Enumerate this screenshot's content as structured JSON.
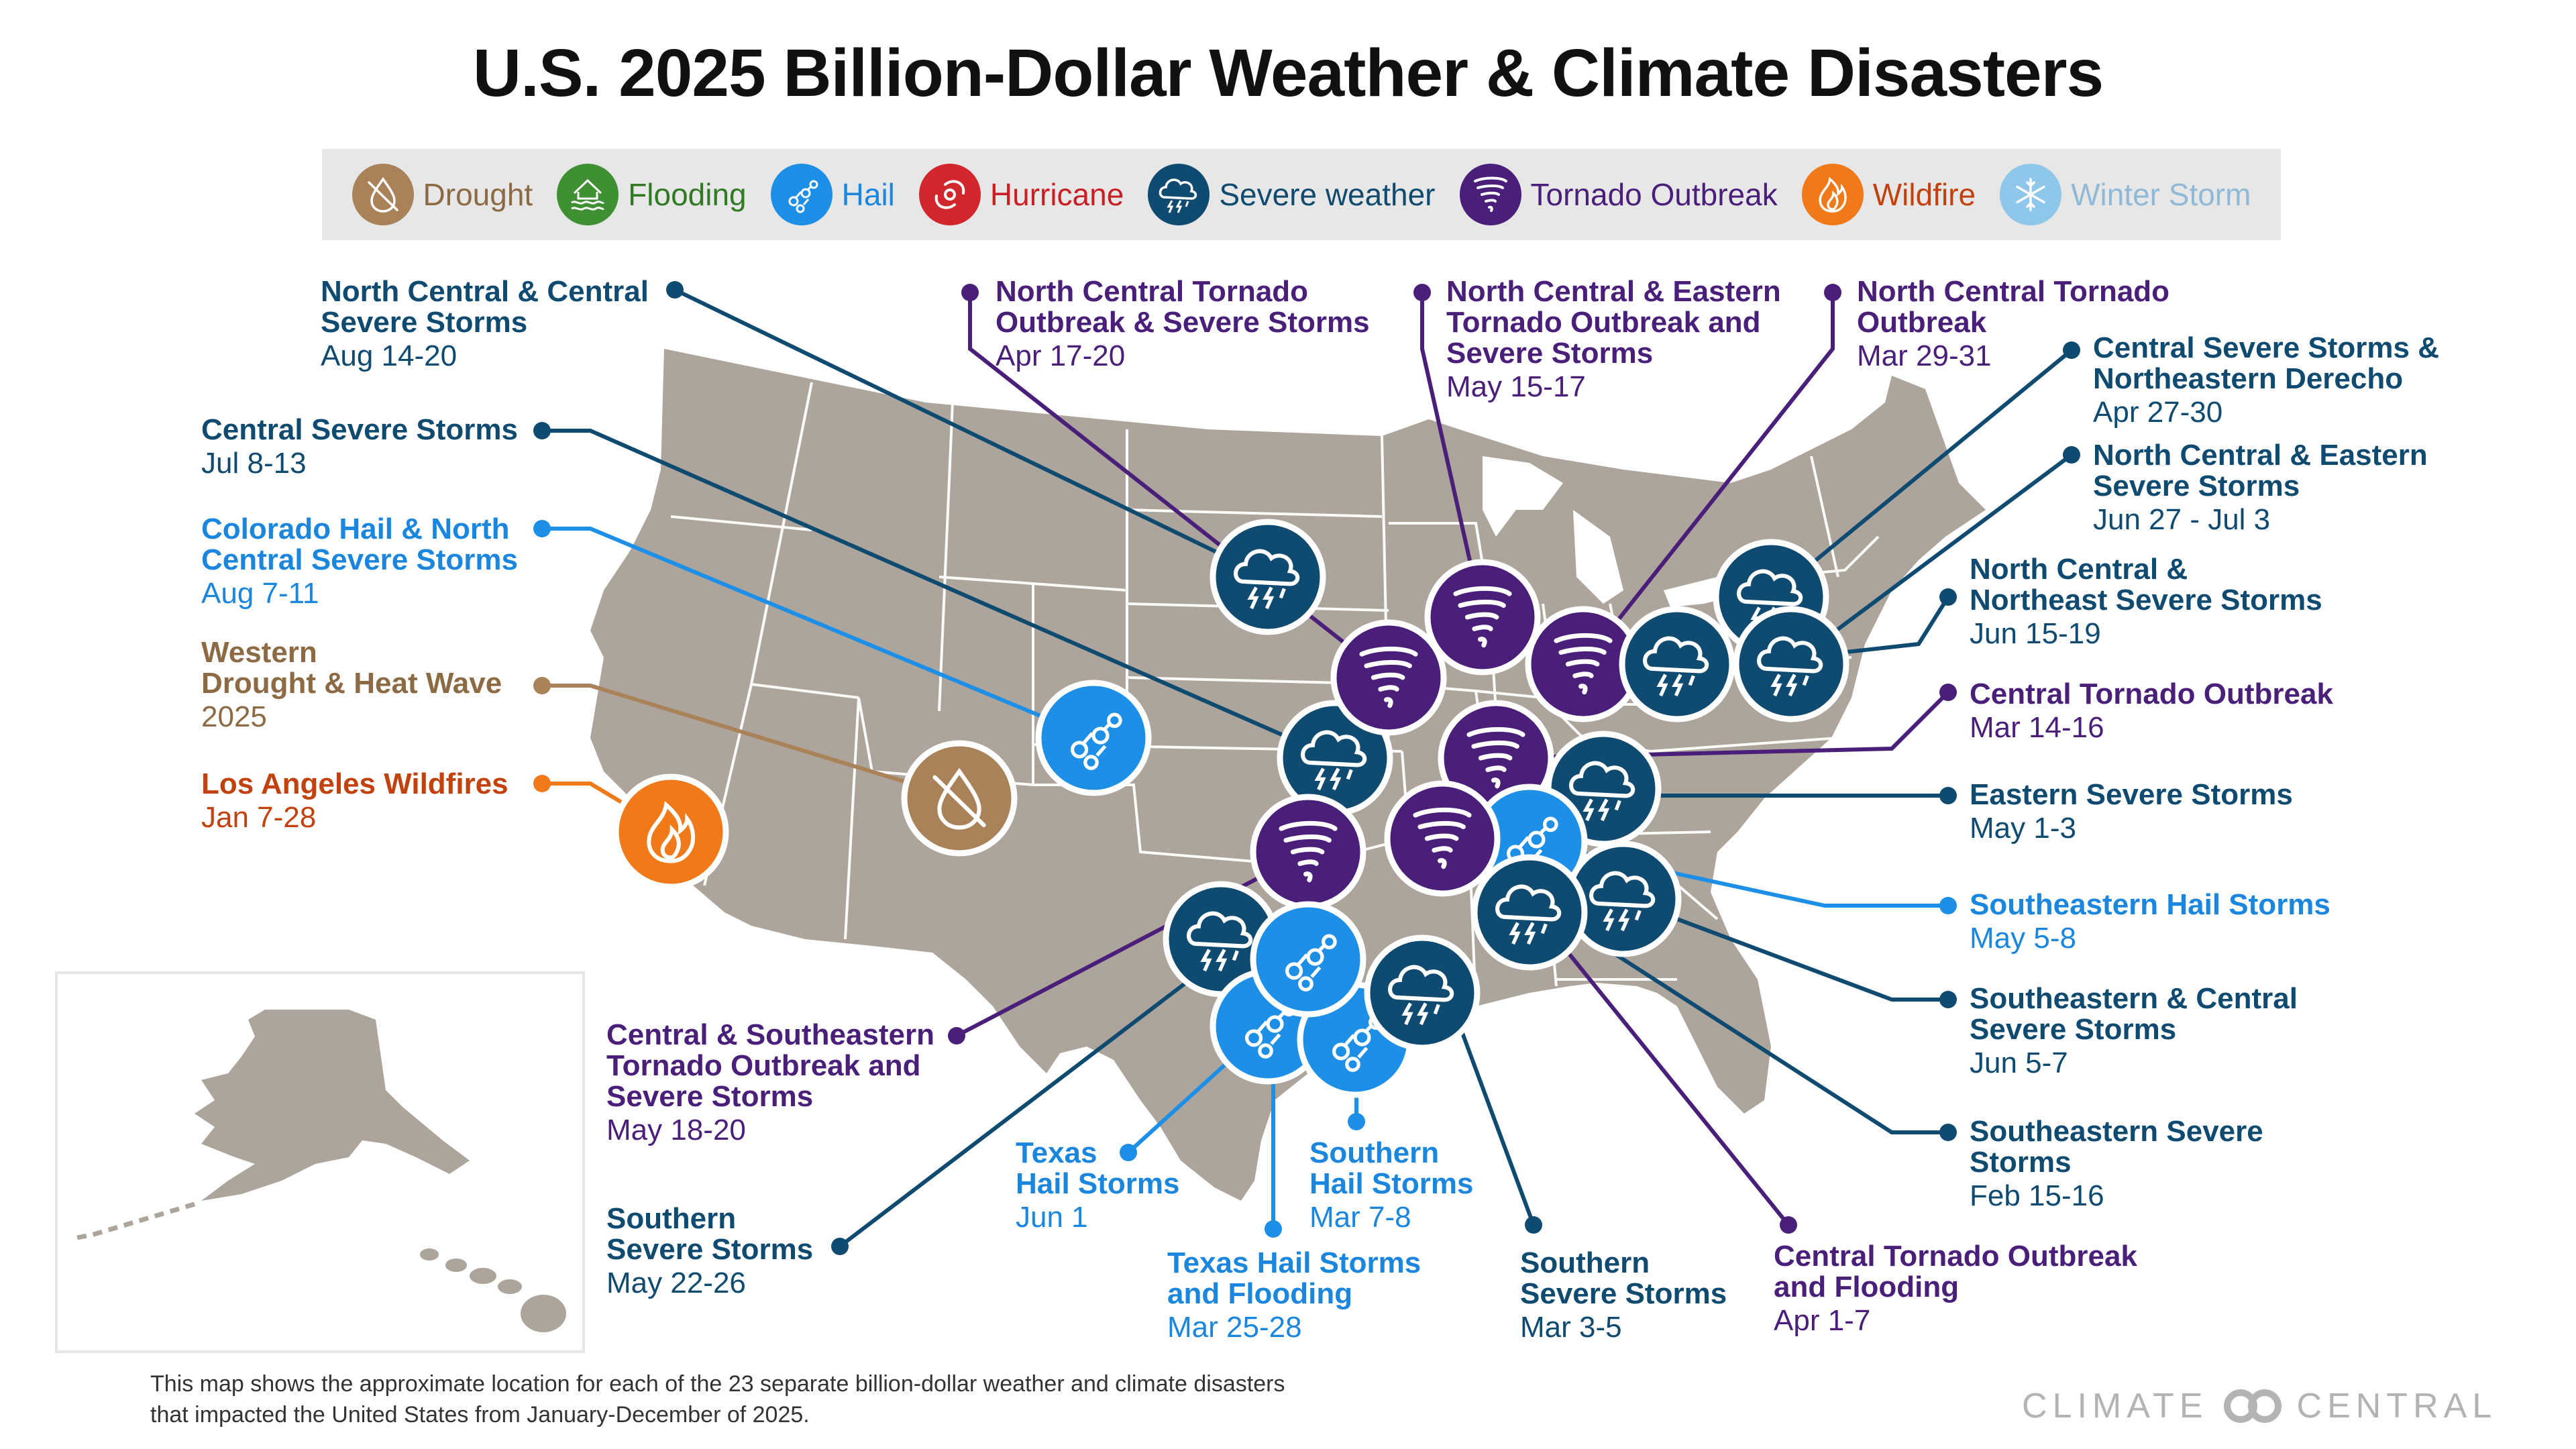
{
  "title": "U.S. 2025 Billion-Dollar Weather & Climate Disasters",
  "legend": [
    {
      "key": "drought",
      "label": "Drought",
      "color": "#a9825a",
      "text_color": "#8c6a44",
      "icon": "drought-icon"
    },
    {
      "key": "flooding",
      "label": "Flooding",
      "color": "#3f8f33",
      "text_color": "#2f7a23",
      "icon": "flooding-icon"
    },
    {
      "key": "hail",
      "label": "Hail",
      "color": "#1d8fe6",
      "text_color": "#1a86de",
      "icon": "hail-icon"
    },
    {
      "key": "hurricane",
      "label": "Hurricane",
      "color": "#d1262c",
      "text_color": "#c81f24",
      "icon": "hurricane-icon"
    },
    {
      "key": "severe",
      "label": "Severe weather",
      "color": "#0f4a70",
      "text_color": "#0f4a70",
      "icon": "storm-cloud-icon"
    },
    {
      "key": "tornado",
      "label": "Tornado Outbreak",
      "color": "#4a1f7a",
      "text_color": "#4a1f7a",
      "icon": "tornado-icon"
    },
    {
      "key": "wildfire",
      "label": "Wildfire",
      "color": "#f07a1a",
      "text_color": "#c2410c",
      "icon": "flame-icon"
    },
    {
      "key": "winter",
      "label": "Winter Storm",
      "color": "#8fc7ea",
      "text_color": "#8fb9d6",
      "icon": "snowflake-icon"
    }
  ],
  "events": [
    {
      "name": "North Central & Central\nSevere Storms",
      "dates": "Aug 14-20",
      "type": "severe"
    },
    {
      "name": "Central Severe Storms",
      "dates": "Jul 8-13",
      "type": "severe"
    },
    {
      "name": "Colorado Hail & North\nCentral Severe Storms",
      "dates": "Aug 7-11",
      "type": "hail"
    },
    {
      "name": "Western\nDrought & Heat Wave",
      "dates": "2025",
      "type": "drought"
    },
    {
      "name": "Los Angeles Wildfires",
      "dates": "Jan 7-28",
      "type": "wildfire"
    },
    {
      "name": "North Central Tornado\nOutbreak & Severe Storms",
      "dates": "Apr 17-20",
      "type": "tornado"
    },
    {
      "name": "North Central & Eastern\nTornado Outbreak and\nSevere Storms",
      "dates": "May 15-17",
      "type": "tornado"
    },
    {
      "name": "North Central Tornado\nOutbreak",
      "dates": "Mar 29-31",
      "type": "tornado"
    },
    {
      "name": "Central Severe Storms &\nNortheastern Derecho",
      "dates": "Apr 27-30",
      "type": "severe"
    },
    {
      "name": "North Central & Eastern\nSevere Storms",
      "dates": "Jun 27 - Jul 3",
      "type": "severe"
    },
    {
      "name": "North Central &\nNortheast Severe Storms",
      "dates": "Jun 15-19",
      "type": "severe"
    },
    {
      "name": "Central Tornado Outbreak",
      "dates": "Mar 14-16",
      "type": "tornado"
    },
    {
      "name": "Eastern Severe Storms",
      "dates": "May 1-3",
      "type": "severe"
    },
    {
      "name": "Southeastern Hail Storms",
      "dates": "May 5-8",
      "type": "hail"
    },
    {
      "name": "Southeastern & Central\nSevere Storms",
      "dates": "Jun 5-7",
      "type": "severe"
    },
    {
      "name": "Southeastern Severe\nStorms",
      "dates": "Feb 15-16",
      "type": "severe"
    },
    {
      "name": "Central & Southeastern\nTornado Outbreak and\nSevere Storms",
      "dates": "May 18-20",
      "type": "tornado"
    },
    {
      "name": "Southern\nSevere Storms",
      "dates": "May 22-26",
      "type": "severe"
    },
    {
      "name": "Texas\nHail Storms",
      "dates": "Jun 1",
      "type": "hail"
    },
    {
      "name": "Southern\nHail Storms",
      "dates": "Mar 7-8",
      "type": "hail"
    },
    {
      "name": "Texas Hail Storms\nand Flooding",
      "dates": "Mar 25-28",
      "type": "hail"
    },
    {
      "name": "Southern\nSevere Storms",
      "dates": "Mar 3-5",
      "type": "severe"
    },
    {
      "name": "Central Tornado Outbreak\nand Flooding",
      "dates": "Apr 1-7",
      "type": "tornado"
    }
  ],
  "footnote": "This map shows the approximate location for each of the 23 separate billion-dollar weather and climate disasters\nthat impacted the United States from January-December of 2025.",
  "brand": "CLIMATE CENTRAL",
  "colors": {
    "land": "#ada59b",
    "state_lines": "#ffffff",
    "inset_border": "#e6e6e6"
  }
}
